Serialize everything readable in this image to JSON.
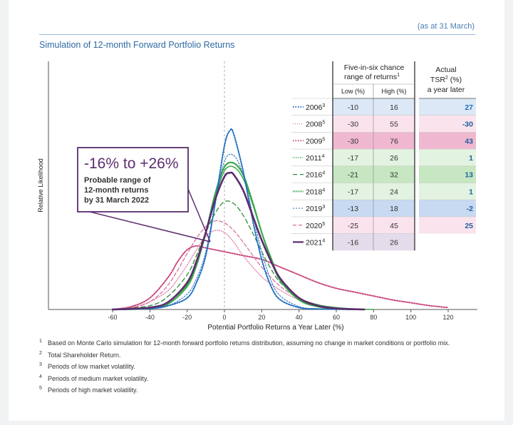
{
  "header": {
    "as_at": "(as at 31 March)",
    "title": "Simulation of 12-month Forward Portfolio Returns"
  },
  "annotation": {
    "range": "-16% to +26%",
    "line1": "Probable range of",
    "line2": "12-month returns",
    "line3": "by 31 March 2022"
  },
  "table": {
    "header_range_1": "Five-in-six chance",
    "header_range_2": "range of returns",
    "header_range_sup": "1",
    "col_low": "Low (%)",
    "col_high": "High (%)",
    "header_tsr_1": "Actual",
    "header_tsr_2": "TSR",
    "header_tsr_sup": "2",
    "header_tsr_2b": " (%)",
    "header_tsr_3": "a year later"
  },
  "chart_data": {
    "type": "line",
    "xlabel": "Potential Portfolio Returns a Year Later (%)",
    "ylabel": "Relative Likelihood",
    "xlim": [
      -60,
      120
    ],
    "xticks": [
      -60,
      -40,
      -20,
      0,
      20,
      40,
      60,
      80,
      100,
      120
    ],
    "series": [
      {
        "name": "2006",
        "sup": "3",
        "low": -10,
        "high": 16,
        "tsr": 27,
        "color": "#1f6fbf",
        "row_bg": "#dce8f6",
        "tsr_color": "#1f6fbf",
        "dash": "1.5,2",
        "width": 2.0,
        "peak": 0.93,
        "x": [
          -60,
          -40,
          -30,
          -20,
          -15,
          -10,
          -5,
          0,
          3,
          5,
          10,
          15,
          20,
          25,
          30,
          40,
          50,
          60,
          75
        ],
        "y": [
          0,
          0.005,
          0.02,
          0.06,
          0.14,
          0.28,
          0.55,
          0.85,
          0.93,
          0.91,
          0.72,
          0.47,
          0.26,
          0.12,
          0.05,
          0.01,
          0.003,
          0.001,
          0
        ]
      },
      {
        "name": "2008",
        "sup": "5",
        "low": -30,
        "high": 55,
        "tsr": -30,
        "color": "#e07aa8",
        "row_bg": "#fbe3ee",
        "tsr_color": "#1f5fa0",
        "dash": "1,2",
        "width": 1.3,
        "peak": 0.42,
        "x": [
          -60,
          -50,
          -40,
          -30,
          -25,
          -20,
          -15,
          -10,
          -5,
          0,
          5,
          10,
          20,
          30,
          40,
          50,
          60,
          75
        ],
        "y": [
          0.003,
          0.01,
          0.04,
          0.1,
          0.16,
          0.23,
          0.31,
          0.38,
          0.41,
          0.4,
          0.35,
          0.28,
          0.17,
          0.1,
          0.05,
          0.02,
          0.008,
          0
        ]
      },
      {
        "name": "2009",
        "sup": "5",
        "low": -30,
        "high": 76,
        "tsr": 43,
        "color": "#c8477f",
        "row_bg": "#f0b8d0",
        "tsr_color": "#1f5fa0",
        "dash": "1.5,2",
        "width": 2.0,
        "peak": 0.33,
        "x": [
          -60,
          -50,
          -40,
          -30,
          -25,
          -20,
          -15,
          -10,
          0,
          10,
          20,
          30,
          40,
          50,
          60,
          70,
          80,
          90,
          100,
          110,
          120
        ],
        "y": [
          0,
          0.015,
          0.06,
          0.17,
          0.25,
          0.31,
          0.33,
          0.32,
          0.3,
          0.28,
          0.26,
          0.22,
          0.18,
          0.14,
          0.11,
          0.09,
          0.07,
          0.05,
          0.035,
          0.02,
          0.01
        ]
      },
      {
        "name": "2011",
        "sup": "4",
        "low": -17,
        "high": 26,
        "tsr": 1,
        "color": "#3aa84a",
        "row_bg": "#e3f3e1",
        "tsr_color": "#1f5fa0",
        "dash": "1,1.5",
        "width": 1.6,
        "peak": 0.74,
        "x": [
          -60,
          -40,
          -30,
          -20,
          -15,
          -10,
          -5,
          0,
          5,
          10,
          15,
          20,
          25,
          30,
          40,
          50,
          60,
          70,
          80
        ],
        "y": [
          0,
          0.01,
          0.04,
          0.13,
          0.24,
          0.4,
          0.58,
          0.72,
          0.74,
          0.68,
          0.55,
          0.4,
          0.27,
          0.16,
          0.06,
          0.025,
          0.01,
          0.003,
          0
        ]
      },
      {
        "name": "2016",
        "sup": "4",
        "low": -21,
        "high": 32,
        "tsr": 13,
        "color": "#2e8b3a",
        "row_bg": "#c6e7c2",
        "tsr_color": "#1f5fa0",
        "dash": "6,4",
        "width": 1.3,
        "peak": 0.56,
        "x": [
          -60,
          -40,
          -30,
          -20,
          -15,
          -10,
          -5,
          0,
          5,
          10,
          15,
          20,
          25,
          30,
          40,
          50,
          60,
          70,
          80
        ],
        "y": [
          0,
          0.02,
          0.07,
          0.18,
          0.28,
          0.4,
          0.5,
          0.56,
          0.55,
          0.49,
          0.4,
          0.3,
          0.21,
          0.14,
          0.06,
          0.025,
          0.008,
          0.002,
          0
        ]
      },
      {
        "name": "2018",
        "sup": "4",
        "low": -17,
        "high": 24,
        "tsr": 1,
        "color": "#3aa84a",
        "row_bg": "#e3f3e1",
        "tsr_color": "#1f5fa0",
        "dash": "1.2,1.2",
        "width": 2.2,
        "peak": 0.76,
        "x": [
          -60,
          -40,
          -30,
          -20,
          -15,
          -10,
          -5,
          0,
          5,
          10,
          15,
          20,
          25,
          30,
          40,
          50,
          60,
          70
        ],
        "y": [
          0,
          0.005,
          0.03,
          0.12,
          0.23,
          0.4,
          0.6,
          0.74,
          0.76,
          0.7,
          0.56,
          0.4,
          0.26,
          0.15,
          0.05,
          0.015,
          0.004,
          0
        ]
      },
      {
        "name": "2019",
        "sup": "3",
        "low": -13,
        "high": 18,
        "tsr": -2,
        "color": "#3a78c4",
        "row_bg": "#c7daf1",
        "tsr_color": "#1f5fa0",
        "dash": "2,2",
        "width": 1.1,
        "peak": 0.8,
        "x": [
          -60,
          -40,
          -30,
          -20,
          -15,
          -10,
          -5,
          0,
          5,
          10,
          15,
          20,
          25,
          30,
          40,
          50,
          60
        ],
        "y": [
          0,
          0.005,
          0.02,
          0.08,
          0.16,
          0.3,
          0.55,
          0.77,
          0.8,
          0.7,
          0.5,
          0.3,
          0.15,
          0.07,
          0.015,
          0.003,
          0
        ]
      },
      {
        "name": "2020",
        "sup": "5",
        "low": -25,
        "high": 45,
        "tsr": 25,
        "color": "#d66a95",
        "row_bg": "#fbe3ee",
        "tsr_color": "#1f5fa0",
        "dash": "5,3",
        "width": 1.2,
        "peak": 0.46,
        "x": [
          -60,
          -50,
          -40,
          -30,
          -20,
          -15,
          -10,
          -5,
          0,
          5,
          10,
          20,
          30,
          40,
          50,
          60,
          70,
          80
        ],
        "y": [
          0,
          0.01,
          0.04,
          0.13,
          0.29,
          0.37,
          0.43,
          0.46,
          0.45,
          0.41,
          0.35,
          0.22,
          0.12,
          0.06,
          0.025,
          0.01,
          0.003,
          0
        ]
      },
      {
        "name": "2021",
        "sup": "4",
        "low": -16,
        "high": 26,
        "tsr": null,
        "color": "#5b2c6f",
        "row_bg": "#e4dcea",
        "tsr_color": "#1f5fa0",
        "dash": "",
        "width": 2.6,
        "peak": 0.71,
        "x": [
          -60,
          -40,
          -30,
          -20,
          -15,
          -10,
          -5,
          0,
          3,
          5,
          10,
          15,
          20,
          25,
          30,
          40,
          50,
          60,
          75
        ],
        "y": [
          0,
          0.01,
          0.04,
          0.14,
          0.25,
          0.4,
          0.57,
          0.69,
          0.71,
          0.7,
          0.62,
          0.49,
          0.36,
          0.25,
          0.16,
          0.06,
          0.02,
          0.005,
          0
        ]
      }
    ]
  },
  "footnotes": [
    {
      "sup": "1",
      "text": "Based on Monte Carlo simulation for 12-month forward portfolio returns distribution, assuming no change in market conditions or portfolio mix."
    },
    {
      "sup": "2",
      "text": "Total Shareholder Return."
    },
    {
      "sup": "3",
      "text": "Periods of low market volatility."
    },
    {
      "sup": "4",
      "text": "Periods of medium market volatility."
    },
    {
      "sup": "5",
      "text": "Periods of high market volatility."
    }
  ]
}
